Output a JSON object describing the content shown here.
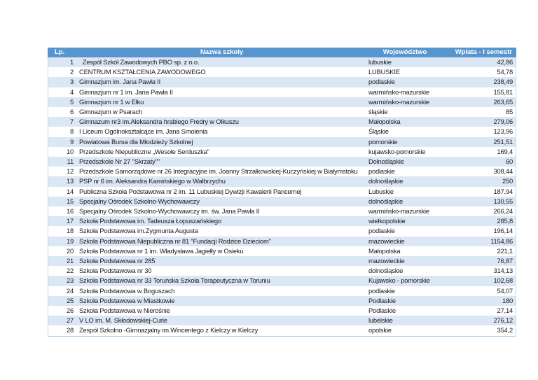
{
  "colors": {
    "header_bg": "#5795ce",
    "header_text": "#ffffff",
    "band_bg": "#dbe7f4",
    "border": "#c3d9ee",
    "border_strong": "#a9c7e4",
    "text": "#1b1b1b"
  },
  "table": {
    "columns": [
      {
        "key": "lp",
        "label": "Lp."
      },
      {
        "key": "name",
        "label": "Nazwa szkoły"
      },
      {
        "key": "voivodeship",
        "label": "Województwo"
      },
      {
        "key": "payment",
        "label": "Wpłata - I semestr"
      }
    ],
    "rows": [
      {
        "lp": "1",
        "name": "  Zespół Szkół Zawodowych PBO sp. z o.o.",
        "voivodeship": "lubuskie",
        "payment": "42,86"
      },
      {
        "lp": "2",
        "name": "CENTRUM KSZTAŁCENIA ZAWODOWEGO",
        "voivodeship": "LUBUSKIE",
        "payment": "54,78"
      },
      {
        "lp": "3",
        "name": "Gimnazjum im. Jana Pawła II",
        "voivodeship": "podlaskie",
        "payment": "238,49"
      },
      {
        "lp": "4",
        "name": "Gimnazjum nr 1 im. Jana Pawła II",
        "voivodeship": "warmińsko-mazurskie",
        "payment": "155,81"
      },
      {
        "lp": "5",
        "name": "Gimnazjum nr 1 w Ełku",
        "voivodeship": "warmińsko-mazurskie",
        "payment": "263,65"
      },
      {
        "lp": "6",
        "name": "Gimnazjum w Psarach",
        "voivodeship": "śląskie",
        "payment": "85"
      },
      {
        "lp": "7",
        "name": "Gimnazum nr3 im.Aleksandra hrabiego Fredry w Olkuszu",
        "voivodeship": "Małopolska",
        "payment": "279,06"
      },
      {
        "lp": "8",
        "name": "I Liceum Ogólnokształcące im. Jana Smolenia",
        "voivodeship": "Śląskie",
        "payment": "123,96"
      },
      {
        "lp": "9",
        "name": "Powiatowa Bursa dla Młodzieży Szkolnej",
        "voivodeship": "pomorskie",
        "payment": "251,51"
      },
      {
        "lp": "10",
        "name": "Przedszkole Niepubliczne „Wesołe Serduszka\"",
        "voivodeship": "kujawsko-pomorskie",
        "payment": "169,4"
      },
      {
        "lp": "11",
        "name": "Przedszkole Nr 27 \"Skrzaty\"\"",
        "voivodeship": "Dolnośląskie",
        "payment": "60"
      },
      {
        "lp": "12",
        "name": "Przedszkole Samorządowe nr 26 Integracyjne im. Joanny Strzałkowskiej-Kuczyńskiej w Białymstoku",
        "voivodeship": "podlaskie",
        "payment": "308,44"
      },
      {
        "lp": "13",
        "name": "PSP nr 6 im. Aleksandra Kamińskiego w Wałbrzychu",
        "voivodeship": "dolnośląskie",
        "payment": "250"
      },
      {
        "lp": "14",
        "name": "Publiczna Szkoła Podstawowa nr 2 im. 11 Lubuskiej Dywizji Kawalerii Pancernej",
        "voivodeship": "Lubuskie",
        "payment": "187,94"
      },
      {
        "lp": "15",
        "name": "Specjalny Ośrodek Szkolno-Wychowawczy",
        "voivodeship": "dolnośląskie",
        "payment": "130,55"
      },
      {
        "lp": "16",
        "name": "Specjalny Ośrodek Szkolno-Wychowawczy im. św. Jana Pawła II",
        "voivodeship": "warmińsko-mazurskie",
        "payment": "266,24"
      },
      {
        "lp": "17",
        "name": "Szkoła Podstawowa im. Tadeusza Łopuszańskiego",
        "voivodeship": "wielkopolskie",
        "payment": "285,8"
      },
      {
        "lp": "18",
        "name": "Szkoła Podstawowa im.Zygmunta Augusta",
        "voivodeship": "podlaskie",
        "payment": "196,14"
      },
      {
        "lp": "19",
        "name": "Szkoła Podstawowa Niepubliczna nr 81 \"Fundacji Rodzice Dzieciom\"",
        "voivodeship": "mazowieckie",
        "payment": "1154,86"
      },
      {
        "lp": "20",
        "name": "Szkoła Podstawowa nr 1 im. Władysława Jagiełły w Osieku",
        "voivodeship": "Małopolska",
        "payment": "221,1"
      },
      {
        "lp": "21",
        "name": "Szkoła Podstawowa nr 285",
        "voivodeship": "mazowieckie",
        "payment": "76,87"
      },
      {
        "lp": "22",
        "name": "Szkoła Podstawowa nr 30",
        "voivodeship": "dolnośląskie",
        "payment": "314,13"
      },
      {
        "lp": "23",
        "name": "Szkoła Podstawowa nr 33 Toruńska Szkoła Terapeutyczna w Toruniu",
        "voivodeship": "Kujawsko - pomorskie",
        "payment": "102,68"
      },
      {
        "lp": "24",
        "name": "Szkoła Podstawowa w Boguszach",
        "voivodeship": "podlaskie",
        "payment": "54,07"
      },
      {
        "lp": "25",
        "name": "Szkoła Podstawowa w Miastkowie",
        "voivodeship": "Podlaskie",
        "payment": "180"
      },
      {
        "lp": "26",
        "name": "Szkoła Podstawowa w Nierośnie",
        "voivodeship": "Podlaskie",
        "payment": "27,14"
      },
      {
        "lp": "27",
        "name": "V LO im. M. Skłodowskiej-Curie",
        "voivodeship": "lubelskie",
        "payment": "276,12"
      },
      {
        "lp": "28",
        "name": "Zespół Szkolno -Gimnazjalny im.Wincentego z Kielczy w Kielczy",
        "voivodeship": "opolskie",
        "payment": "354,2"
      }
    ]
  }
}
